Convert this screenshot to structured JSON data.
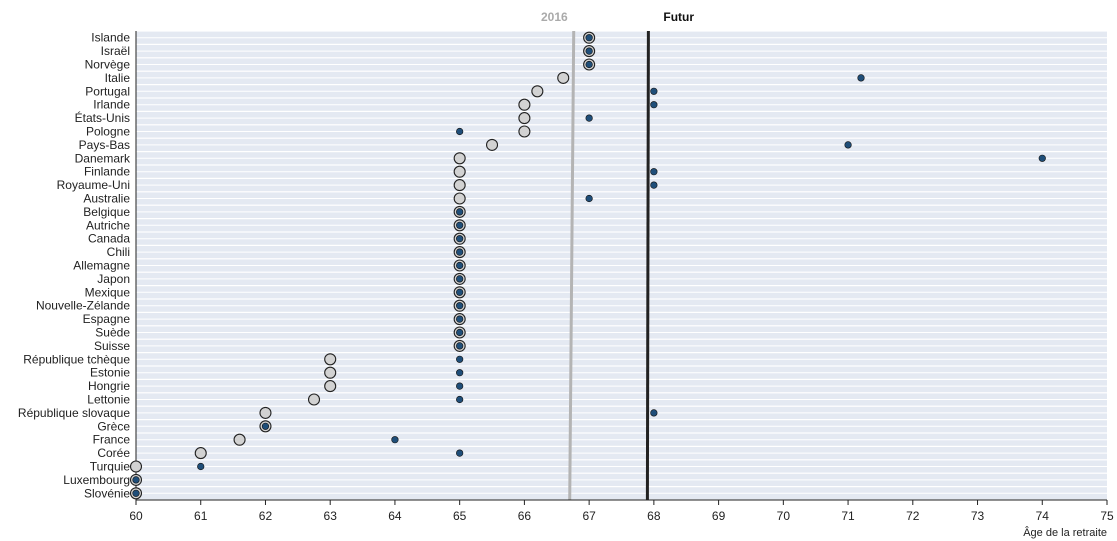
{
  "chart_data": {
    "type": "scatter",
    "xlabel": "Âge de la retraite",
    "xlim": [
      60,
      75
    ],
    "x_ticks": [
      60,
      61,
      62,
      63,
      64,
      65,
      66,
      67,
      68,
      69,
      70,
      71,
      72,
      73,
      74,
      75
    ],
    "grid": true,
    "reference_lines": [
      {
        "label": "2016",
        "x": 66.7,
        "color": "#b4b4b4"
      },
      {
        "label": "Futur",
        "x": 67.9,
        "color": "#222222"
      }
    ],
    "colors": {
      "current": "#d2d2d2",
      "future": "#1f4e79",
      "row_band": "#e4e9f2"
    },
    "countries": [
      "Islande",
      "Israël",
      "Norvège",
      "Italie",
      "Portugal",
      "Irlande",
      "États-Unis",
      "Pologne",
      "Pays-Bas",
      "Danemark",
      "Finlande",
      "Royaume-Uni",
      "Australie",
      "Belgique",
      "Autriche",
      "Canada",
      "Chili",
      "Allemagne",
      "Japon",
      "Mexique",
      "Nouvelle-Zélande",
      "Espagne",
      "Suède",
      "Suisse",
      "République tchèque",
      "Estonie",
      "Hongrie",
      "Lettonie",
      "République slovaque",
      "Grèce",
      "France",
      "Corée",
      "Turquie",
      "Luxembourg",
      "Slovénie"
    ],
    "current": [
      67,
      67,
      67,
      66.6,
      66.2,
      66,
      66,
      66,
      65.5,
      65,
      65,
      65,
      65,
      65,
      65,
      65,
      65,
      65,
      65,
      65,
      65,
      65,
      65,
      65,
      63,
      63,
      63,
      62.75,
      62,
      62,
      61.6,
      61,
      60,
      60,
      60
    ],
    "future": [
      67,
      67,
      67,
      71.2,
      68,
      68,
      67,
      65,
      71,
      74,
      68,
      68,
      67,
      65,
      65,
      65,
      65,
      65,
      65,
      65,
      65,
      65,
      65,
      65,
      65,
      65,
      65,
      65,
      68,
      62,
      64,
      65,
      61,
      60,
      60
    ]
  }
}
